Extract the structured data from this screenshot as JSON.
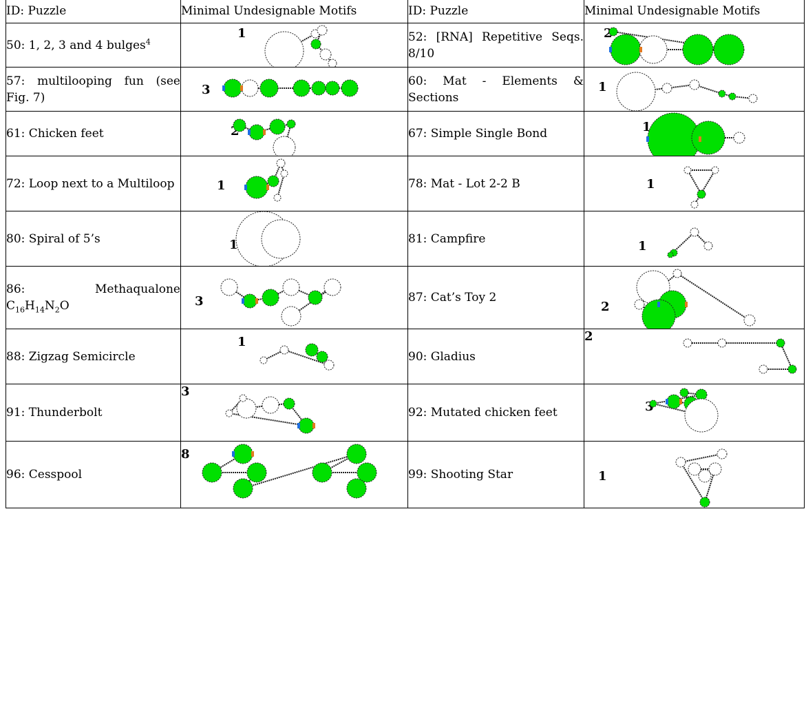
{
  "headers": [
    "ID: Puzzle",
    "Minimal Undesignable Motifs",
    "ID: Puzzle",
    "Minimal Undesignable Motifs"
  ],
  "rows": [
    {
      "left_id": "50: 1, 2, 3 and 4 bulges",
      "left_sup": "4",
      "left_count": "1",
      "right_id": "52: [RNA] Repetitive Seqs. 8/10",
      "right_count": "2"
    },
    {
      "left_id": "57: multilooping fun (see Fig. 7)",
      "left_count": "3",
      "right_id": "60: Mat - Elements & Sections",
      "right_count": "1"
    },
    {
      "left_id": "61: Chicken feet",
      "left_count": "2",
      "right_id": "67: Simple Single Bond",
      "right_count": "1"
    },
    {
      "left_id": "72: Loop next to a Multiloop",
      "left_count": "1",
      "right_id": "78: Mat - Lot 2-2 B",
      "right_count": "1"
    },
    {
      "left_id": "80: Spiral of 5’s",
      "left_count": "1",
      "right_id": "81: Campfire",
      "right_count": "1"
    },
    {
      "left_id": "86: Methaqualone",
      "left_formula": "C16H14N2O",
      "left_count": "3",
      "right_id": "87: Cat’s Toy 2",
      "right_count": "2"
    },
    {
      "left_id": "88: Zigzag Semicircle",
      "left_count": "1",
      "right_id": "90: Gladius",
      "right_count": "2"
    },
    {
      "left_id": "91: Thunderbolt",
      "left_count": "3",
      "right_id": "92: Mutated chicken feet",
      "right_count": "3"
    },
    {
      "left_id": "96: Cesspool",
      "left_count": "8",
      "right_id": "99: Shooting Star",
      "right_count": "1"
    }
  ],
  "colors": {
    "loop_fill": "#00e000",
    "pair_blue": "#1e6fe0",
    "pair_orange": "#e07a1e",
    "outline": "#222222"
  }
}
